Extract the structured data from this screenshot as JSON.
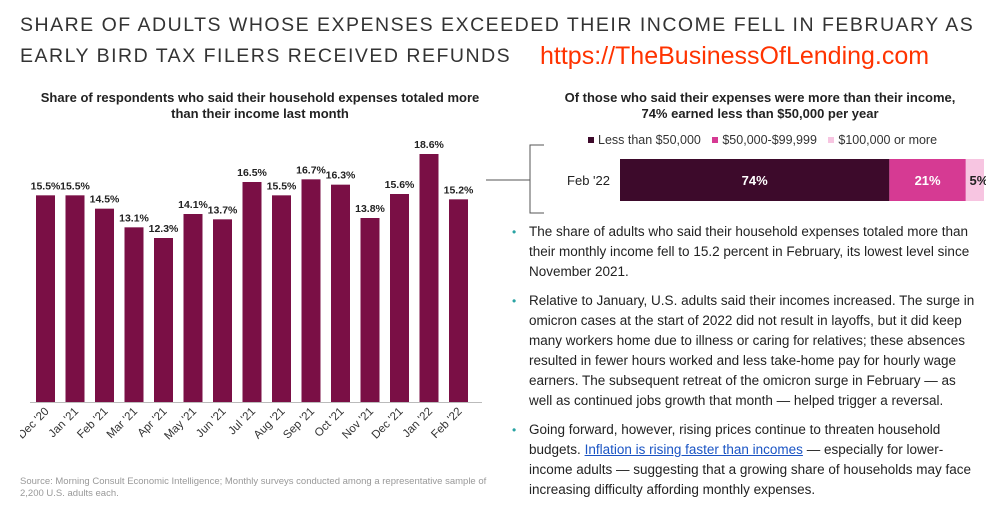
{
  "headline": {
    "line1": "SHARE OF ADULTS WHOSE EXPENSES EXCEEDED THEIR INCOME FELL IN FEBRUARY AS",
    "line2": "EARLY BIRD TAX FILERS RECEIVED REFUNDS"
  },
  "watermark": "https://TheBusinessOfLending.com",
  "chart_data": [
    {
      "type": "bar",
      "title": "Share of respondents who said their household expenses totaled more than their income last month",
      "categories": [
        "Dec '20",
        "Jan '21",
        "Feb '21",
        "Mar '21",
        "Apr '21",
        "May '21",
        "Jun '21",
        "Jul '21",
        "Aug '21",
        "Sep '21",
        "Oct '21",
        "Nov '21",
        "Dec '21",
        "Jan '22",
        "Feb '22"
      ],
      "values": [
        15.5,
        15.5,
        14.5,
        13.1,
        12.3,
        14.1,
        13.7,
        16.5,
        15.5,
        16.7,
        16.3,
        13.8,
        15.6,
        18.6,
        15.2
      ],
      "labels": [
        "15.5%",
        "15.5%",
        "14.5%",
        "13.1%",
        "12.3%",
        "14.1%",
        "13.7%",
        "16.5%",
        "15.5%",
        "16.7%",
        "16.3%",
        "13.8%",
        "15.6%",
        "18.6%",
        "15.2%"
      ],
      "ylim": [
        0,
        19.5
      ],
      "color": "#7a0f45"
    },
    {
      "type": "bar",
      "orientation": "horizontal-stacked",
      "title": "Of those who said their expenses were more than their income, 74% earned less than $50,000 per year",
      "categories": [
        "Feb '22"
      ],
      "series": [
        {
          "name": "Less than $50,000",
          "values": [
            74
          ],
          "label": "74%",
          "color": "#3d0a2b"
        },
        {
          "name": "$50,000-$99,999",
          "values": [
            21
          ],
          "label": "21%",
          "color": "#d63a93"
        },
        {
          "name": "$100,000 or more",
          "values": [
            5
          ],
          "label": "5%",
          "color": "#f7c5e1"
        }
      ],
      "legend_position": "top"
    }
  ],
  "bullets": {
    "b1": "The share of adults who said their household expenses totaled more than their monthly income fell to 15.2 percent in February, its lowest level since November 2021.",
    "b2": "Relative to January, U.S. adults said their incomes increased. The surge in omicron cases at the start of 2022 did not result in layoffs, but it did keep many workers home due to illness or caring for relatives; these absences resulted in fewer hours worked and less take-home pay for hourly wage earners. The subsequent retreat of the omicron surge in February — as well as continued jobs growth that month — helped trigger a reversal.",
    "b3_pre": "Going forward, however, rising prices continue to threaten household budgets.",
    "b3_link": "Inflation is rising faster than incomes",
    "b3_post": "— especially for lower-income adults — suggesting that a growing share of households may face increasing difficulty affording monthly expenses."
  },
  "source": "Source: Morning Consult Economic Intelligence; Monthly surveys conducted among a representative sample of 2,200 U.S. adults each.",
  "colors": {
    "accent_bullet": "#2aa3a3",
    "link": "#1a54c4",
    "watermark": "#ff3300"
  }
}
